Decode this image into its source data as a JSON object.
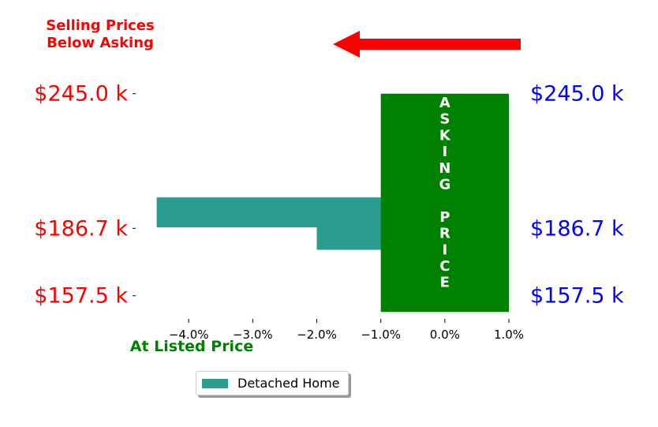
{
  "chart_data": {
    "type": "bar",
    "orientation": "horizontal",
    "categories": [
      "$157.5 k",
      "$186.7 k",
      "$245.0 k"
    ],
    "y_tick_values": [
      157.5,
      186.7,
      245.0
    ],
    "y_tick_labels_left": [
      "$157.5 k",
      "$186.7 k",
      "$245.0 k"
    ],
    "y_tick_labels_right": [
      "$157.5 k",
      "$186.7 k",
      "$245.0 k"
    ],
    "ylim": [
      147.5,
      255.5
    ],
    "series": [
      {
        "name": "Detached Home",
        "color": "#2a9d8f",
        "bars": [
          {
            "y": 193.6,
            "value": -4.5
          },
          {
            "y": 183.9,
            "value": -2.0
          }
        ]
      }
    ],
    "asking_band": {
      "label": "A S K I N G  P R I C E",
      "letters": [
        "A",
        "S",
        "K",
        "I",
        "N",
        "G",
        "",
        "P",
        "R",
        "I",
        "C",
        "E"
      ],
      "xmin": -1.0,
      "xmax": 1.0,
      "ymin": 150.5,
      "ymax": 245.0,
      "color": "#008000"
    },
    "xticks": [
      -4.0,
      -3.0,
      -2.0,
      -1.0,
      0.0,
      1.0
    ],
    "xtick_labels": [
      "−4.0%",
      "−3.0%",
      "−2.0%",
      "−1.0%",
      "0.0%",
      "1.0%"
    ],
    "xlim": [
      -5.0,
      1.0
    ],
    "annotations": {
      "below_asking": [
        "Selling Prices",
        "Below Asking"
      ],
      "at_listed": "At Listed Price"
    },
    "arrow_direction": "left",
    "colors": {
      "left_labels": "#ff0000",
      "right_labels": "#0000ff",
      "at_listed": "#008000",
      "arrow": "#ff0000"
    },
    "legend_position": "bottom-center",
    "grid": false
  }
}
